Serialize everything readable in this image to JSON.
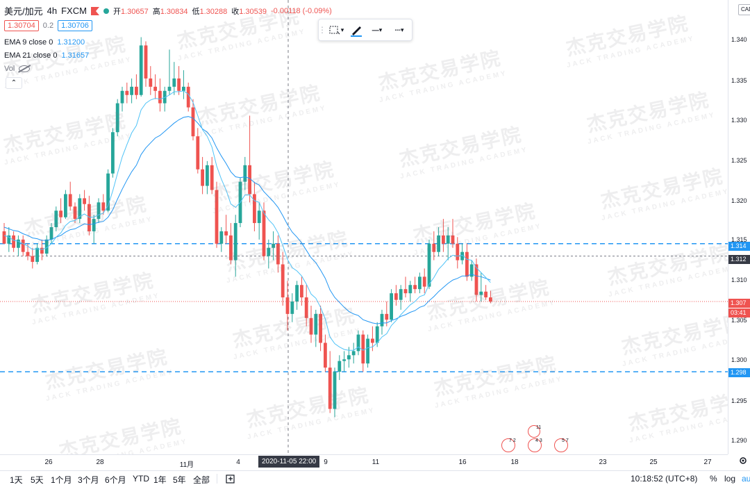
{
  "legend": {
    "symbol": "美元/加元",
    "interval": "4h",
    "source": "FXCM",
    "open_label": "开",
    "open": "1.30657",
    "high_label": "高",
    "high": "1.30834",
    "low_label": "低",
    "low": "1.30288",
    "close_label": "收",
    "close": "1.30539",
    "change": "-0.00118 (-0.09%)",
    "sell_price": "1.30704",
    "spread": "0.2",
    "buy_price": "1.30706",
    "ema9_label": "EMA 9 close 0",
    "ema9_value": "1.31200",
    "ema21_label": "EMA 21 close 0",
    "ema21_value": "1.31657",
    "vol_label": "Vol"
  },
  "toolbar": {
    "collapse_glyph": "⌃",
    "line_tool_glyph": "─",
    "dash_tool_glyph": "┄",
    "chevron": "▾"
  },
  "price_axis": {
    "currency_btn": "CAD",
    "ticks": [
      "1.340",
      "1.335",
      "1.330",
      "1.325",
      "1.320",
      "1.315",
      "1.310",
      "1.305",
      "1.300",
      "1.295",
      "1.290"
    ],
    "tag_upper_line": "1.314",
    "tag_mid_line": "1.312",
    "tag_current": "1.307",
    "tag_countdown": "03:41",
    "tag_lower_line": "1.298"
  },
  "time_axis": {
    "labels": [
      "26",
      "28",
      "11月",
      "4",
      "9",
      "11",
      "16",
      "18",
      "23",
      "25",
      "27"
    ],
    "crosshair": "2020-11-05  22:00"
  },
  "events": [
    {
      "count": "7 2"
    },
    {
      "count": "4 3"
    },
    {
      "count": "5 7"
    },
    {
      "count": "11"
    }
  ],
  "bottom_bar": {
    "ranges": [
      "1天",
      "5天",
      "1个月",
      "3个月",
      "6个月",
      "YTD",
      "1年",
      "5年",
      "全部"
    ],
    "time": "10:18:52 (UTC+8)",
    "percent": "%",
    "log": "log",
    "auto": "au"
  },
  "watermark": {
    "cn": "杰克交易学院",
    "en": "JACK TRADING ACADEMY"
  },
  "colors": {
    "up": "#26a69a",
    "down": "#ef5350",
    "ema9": "#2196f3",
    "ema21": "#2196f3",
    "hline": "#2196f3"
  },
  "chart_data": {
    "type": "candlestick",
    "ylim": [
      1.2885,
      1.3435
    ],
    "horizontal_lines": [
      1.314,
      1.3125,
      1.307,
      1.2985
    ],
    "ohlc": [
      [
        1.3155,
        1.3165,
        1.3145,
        1.314
      ],
      [
        1.314,
        1.316,
        1.313,
        1.315
      ],
      [
        1.315,
        1.3155,
        1.313,
        1.3135
      ],
      [
        1.3135,
        1.315,
        1.3125,
        1.3145
      ],
      [
        1.3145,
        1.315,
        1.3125,
        1.313
      ],
      [
        1.313,
        1.314,
        1.312,
        1.3125
      ],
      [
        1.3125,
        1.3135,
        1.311,
        1.3118
      ],
      [
        1.3118,
        1.314,
        1.3115,
        1.3135
      ],
      [
        1.3135,
        1.3145,
        1.312,
        1.3128
      ],
      [
        1.3128,
        1.315,
        1.3125,
        1.3145
      ],
      [
        1.3145,
        1.3165,
        1.314,
        1.316
      ],
      [
        1.316,
        1.3185,
        1.3155,
        1.318
      ],
      [
        1.318,
        1.3195,
        1.3165,
        1.3172
      ],
      [
        1.3172,
        1.3205,
        1.317,
        1.32
      ],
      [
        1.32,
        1.3215,
        1.318,
        1.3185
      ],
      [
        1.3185,
        1.319,
        1.3165,
        1.317
      ],
      [
        1.317,
        1.32,
        1.3165,
        1.3195
      ],
      [
        1.3195,
        1.3205,
        1.318,
        1.3188
      ],
      [
        1.3188,
        1.3198,
        1.315,
        1.3155
      ],
      [
        1.3155,
        1.3175,
        1.314,
        1.317
      ],
      [
        1.317,
        1.3195,
        1.3165,
        1.319
      ],
      [
        1.319,
        1.32,
        1.3175,
        1.318
      ],
      [
        1.318,
        1.323,
        1.3178,
        1.3225
      ],
      [
        1.3225,
        1.328,
        1.322,
        1.3275
      ],
      [
        1.3275,
        1.3315,
        1.327,
        1.331
      ],
      [
        1.331,
        1.333,
        1.33,
        1.3325
      ],
      [
        1.3325,
        1.3335,
        1.331,
        1.332
      ],
      [
        1.332,
        1.334,
        1.331,
        1.333
      ],
      [
        1.333,
        1.3345,
        1.3315,
        1.332
      ],
      [
        1.332,
        1.339,
        1.3318,
        1.338
      ],
      [
        1.338,
        1.3385,
        1.333,
        1.334
      ],
      [
        1.334,
        1.3355,
        1.332,
        1.333
      ],
      [
        1.333,
        1.3345,
        1.3315,
        1.3325
      ],
      [
        1.3325,
        1.334,
        1.33,
        1.331
      ],
      [
        1.331,
        1.333,
        1.33,
        1.3325
      ],
      [
        1.3325,
        1.3375,
        1.332,
        1.333
      ],
      [
        1.333,
        1.336,
        1.332,
        1.334
      ],
      [
        1.334,
        1.3355,
        1.332,
        1.3325
      ],
      [
        1.3325,
        1.335,
        1.3315,
        1.333
      ],
      [
        1.333,
        1.3335,
        1.33,
        1.3305
      ],
      [
        1.3305,
        1.3315,
        1.3265,
        1.327
      ],
      [
        1.327,
        1.328,
        1.3225,
        1.323
      ],
      [
        1.323,
        1.3245,
        1.32,
        1.321
      ],
      [
        1.321,
        1.324,
        1.32,
        1.3235
      ],
      [
        1.3235,
        1.3245,
        1.32,
        1.3205
      ],
      [
        1.3205,
        1.3215,
        1.3135,
        1.314
      ],
      [
        1.314,
        1.316,
        1.313,
        1.3155
      ],
      [
        1.3155,
        1.3175,
        1.314,
        1.315
      ],
      [
        1.315,
        1.3165,
        1.3115,
        1.312
      ],
      [
        1.312,
        1.3175,
        1.31,
        1.3165
      ],
      [
        1.3165,
        1.322,
        1.316,
        1.3215
      ],
      [
        1.3215,
        1.3245,
        1.3205,
        1.3235
      ],
      [
        1.3235,
        1.3295,
        1.319,
        1.32
      ],
      [
        1.32,
        1.3215,
        1.3155,
        1.3165
      ],
      [
        1.3165,
        1.319,
        1.3145,
        1.318
      ],
      [
        1.318,
        1.319,
        1.312,
        1.3125
      ],
      [
        1.3125,
        1.3145,
        1.311,
        1.3135
      ],
      [
        1.3135,
        1.3155,
        1.312,
        1.314
      ],
      [
        1.314,
        1.315,
        1.3105,
        1.3115
      ],
      [
        1.3115,
        1.313,
        1.3065,
        1.3075
      ],
      [
        1.3075,
        1.3095,
        1.3035,
        1.3055
      ],
      [
        1.3055,
        1.308,
        1.3045,
        1.307
      ],
      [
        1.307,
        1.3095,
        1.306,
        1.309
      ],
      [
        1.309,
        1.31,
        1.3065,
        1.3075
      ],
      [
        1.3075,
        1.309,
        1.304,
        1.305
      ],
      [
        1.305,
        1.3065,
        1.302,
        1.303
      ],
      [
        1.303,
        1.306,
        1.3015,
        1.3055
      ],
      [
        1.3055,
        1.3065,
        1.301,
        1.302
      ],
      [
        1.302,
        1.303,
        1.2985,
        1.299
      ],
      [
        1.299,
        1.301,
        1.2935,
        1.294
      ],
      [
        1.294,
        1.299,
        1.293,
        1.2985
      ],
      [
        1.2985,
        1.3005,
        1.2975,
        1.2998
      ],
      [
        1.2998,
        1.301,
        1.2985,
        1.3
      ],
      [
        1.3,
        1.3015,
        1.299,
        1.3005
      ],
      [
        1.3005,
        1.302,
        1.2995,
        1.301
      ],
      [
        1.301,
        1.3035,
        1.3005,
        1.303
      ],
      [
        1.303,
        1.3035,
        1.2985,
        1.2995
      ],
      [
        1.2995,
        1.303,
        1.299,
        1.3025
      ],
      [
        1.3025,
        1.304,
        1.301,
        1.302
      ],
      [
        1.302,
        1.3045,
        1.3015,
        1.304
      ],
      [
        1.304,
        1.306,
        1.303,
        1.3055
      ],
      [
        1.3055,
        1.307,
        1.304,
        1.3048
      ],
      [
        1.3048,
        1.3085,
        1.3045,
        1.308
      ],
      [
        1.308,
        1.309,
        1.3065,
        1.3072
      ],
      [
        1.3072,
        1.309,
        1.306,
        1.3085
      ],
      [
        1.3085,
        1.31,
        1.3075,
        1.308
      ],
      [
        1.308,
        1.3095,
        1.307,
        1.309
      ],
      [
        1.309,
        1.31,
        1.308,
        1.3085
      ],
      [
        1.3085,
        1.3105,
        1.308,
        1.31
      ],
      [
        1.31,
        1.311,
        1.308,
        1.3088
      ],
      [
        1.3088,
        1.3145,
        1.3085,
        1.314
      ],
      [
        1.314,
        1.3155,
        1.312,
        1.313
      ],
      [
        1.313,
        1.316,
        1.3125,
        1.315
      ],
      [
        1.315,
        1.317,
        1.313,
        1.314
      ],
      [
        1.314,
        1.316,
        1.312,
        1.315
      ],
      [
        1.315,
        1.317,
        1.3135,
        1.314
      ],
      [
        1.314,
        1.3148,
        1.311,
        1.312
      ],
      [
        1.312,
        1.314,
        1.3115,
        1.313
      ],
      [
        1.313,
        1.314,
        1.3095,
        1.31
      ],
      [
        1.31,
        1.312,
        1.3095,
        1.3115
      ],
      [
        1.3115,
        1.3122,
        1.307,
        1.3078
      ],
      [
        1.3078,
        1.3105,
        1.307,
        1.3082
      ],
      [
        1.3082,
        1.309,
        1.3072,
        1.3075
      ],
      [
        1.3075,
        1.3083,
        1.3068,
        1.307
      ]
    ],
    "ema9": [
      1.315,
      1.3148,
      1.3144,
      1.3143,
      1.314,
      1.3137,
      1.3133,
      1.3134,
      1.3133,
      1.3135,
      1.314,
      1.3148,
      1.3153,
      1.3162,
      1.3167,
      1.3168,
      1.3173,
      1.3176,
      1.3172,
      1.3172,
      1.3175,
      1.3177,
      1.3186,
      1.3204,
      1.3225,
      1.3245,
      1.326,
      1.3274,
      1.3283,
      1.3302,
      1.331,
      1.3314,
      1.3316,
      1.3315,
      1.3317,
      1.332,
      1.3324,
      1.3324,
      1.3325,
      1.3321,
      1.3311,
      1.3295,
      1.3278,
      1.327,
      1.3257,
      1.3234,
      1.3218,
      1.3205,
      1.3188,
      1.3184,
      1.319,
      1.3199,
      1.3199,
      1.3192,
      1.319,
      1.3177,
      1.3169,
      1.3163,
      1.3153,
      1.3138,
      1.3121,
      1.3111,
      1.3107,
      1.3101,
      1.3091,
      1.3079,
      1.3074,
      1.3063,
      1.3049,
      1.3027,
      1.3019,
      1.3015,
      1.3012,
      1.3011,
      1.3011,
      1.3015,
      1.3011,
      1.3014,
      1.3015,
      1.302,
      1.3027,
      1.3031,
      1.3041,
      1.3047,
      1.3054,
      1.306,
      1.3066,
      1.307,
      1.3076,
      1.3078,
      1.3091,
      1.3099,
      1.3109,
      1.3115,
      1.3122,
      1.3126,
      1.3125,
      1.3126,
      1.3121,
      1.312,
      1.3111,
      1.3105,
      1.3099,
      1.3093
    ],
    "ema21": [
      1.316,
      1.3158,
      1.3156,
      1.3155,
      1.3152,
      1.315,
      1.3147,
      1.3146,
      1.3144,
      1.3144,
      1.3145,
      1.3148,
      1.315,
      1.3154,
      1.3157,
      1.3158,
      1.3161,
      1.3164,
      1.3163,
      1.3164,
      1.3166,
      1.3167,
      1.3172,
      1.3181,
      1.3194,
      1.3206,
      1.3217,
      1.3227,
      1.3235,
      1.3248,
      1.3256,
      1.3262,
      1.3268,
      1.3271,
      1.3276,
      1.3281,
      1.3286,
      1.329,
      1.3293,
      1.3294,
      1.3292,
      1.3286,
      1.3279,
      1.3275,
      1.3268,
      1.3256,
      1.3246,
      1.3237,
      1.3227,
      1.3221,
      1.322,
      1.3221,
      1.3219,
      1.3214,
      1.3211,
      1.3203,
      1.3197,
      1.3191,
      1.3184,
      1.3174,
      1.3163,
      1.3154,
      1.3148,
      1.3141,
      1.3132,
      1.3123,
      1.3117,
      1.3108,
      1.3098,
      1.3084,
      1.3075,
      1.3069,
      1.3063,
      1.3058,
      1.3055,
      1.3053,
      1.3048,
      1.3046,
      1.3044,
      1.3043,
      1.3044,
      1.3044,
      1.3047,
      1.3049,
      1.3052,
      1.3054,
      1.3057,
      1.3059,
      1.3063,
      1.3065,
      1.3071,
      1.3076,
      1.3082,
      1.3087,
      1.3092,
      1.3096,
      1.3098,
      1.3101,
      1.3101,
      1.3103,
      1.3101,
      1.31,
      1.3098,
      1.3096
    ]
  }
}
